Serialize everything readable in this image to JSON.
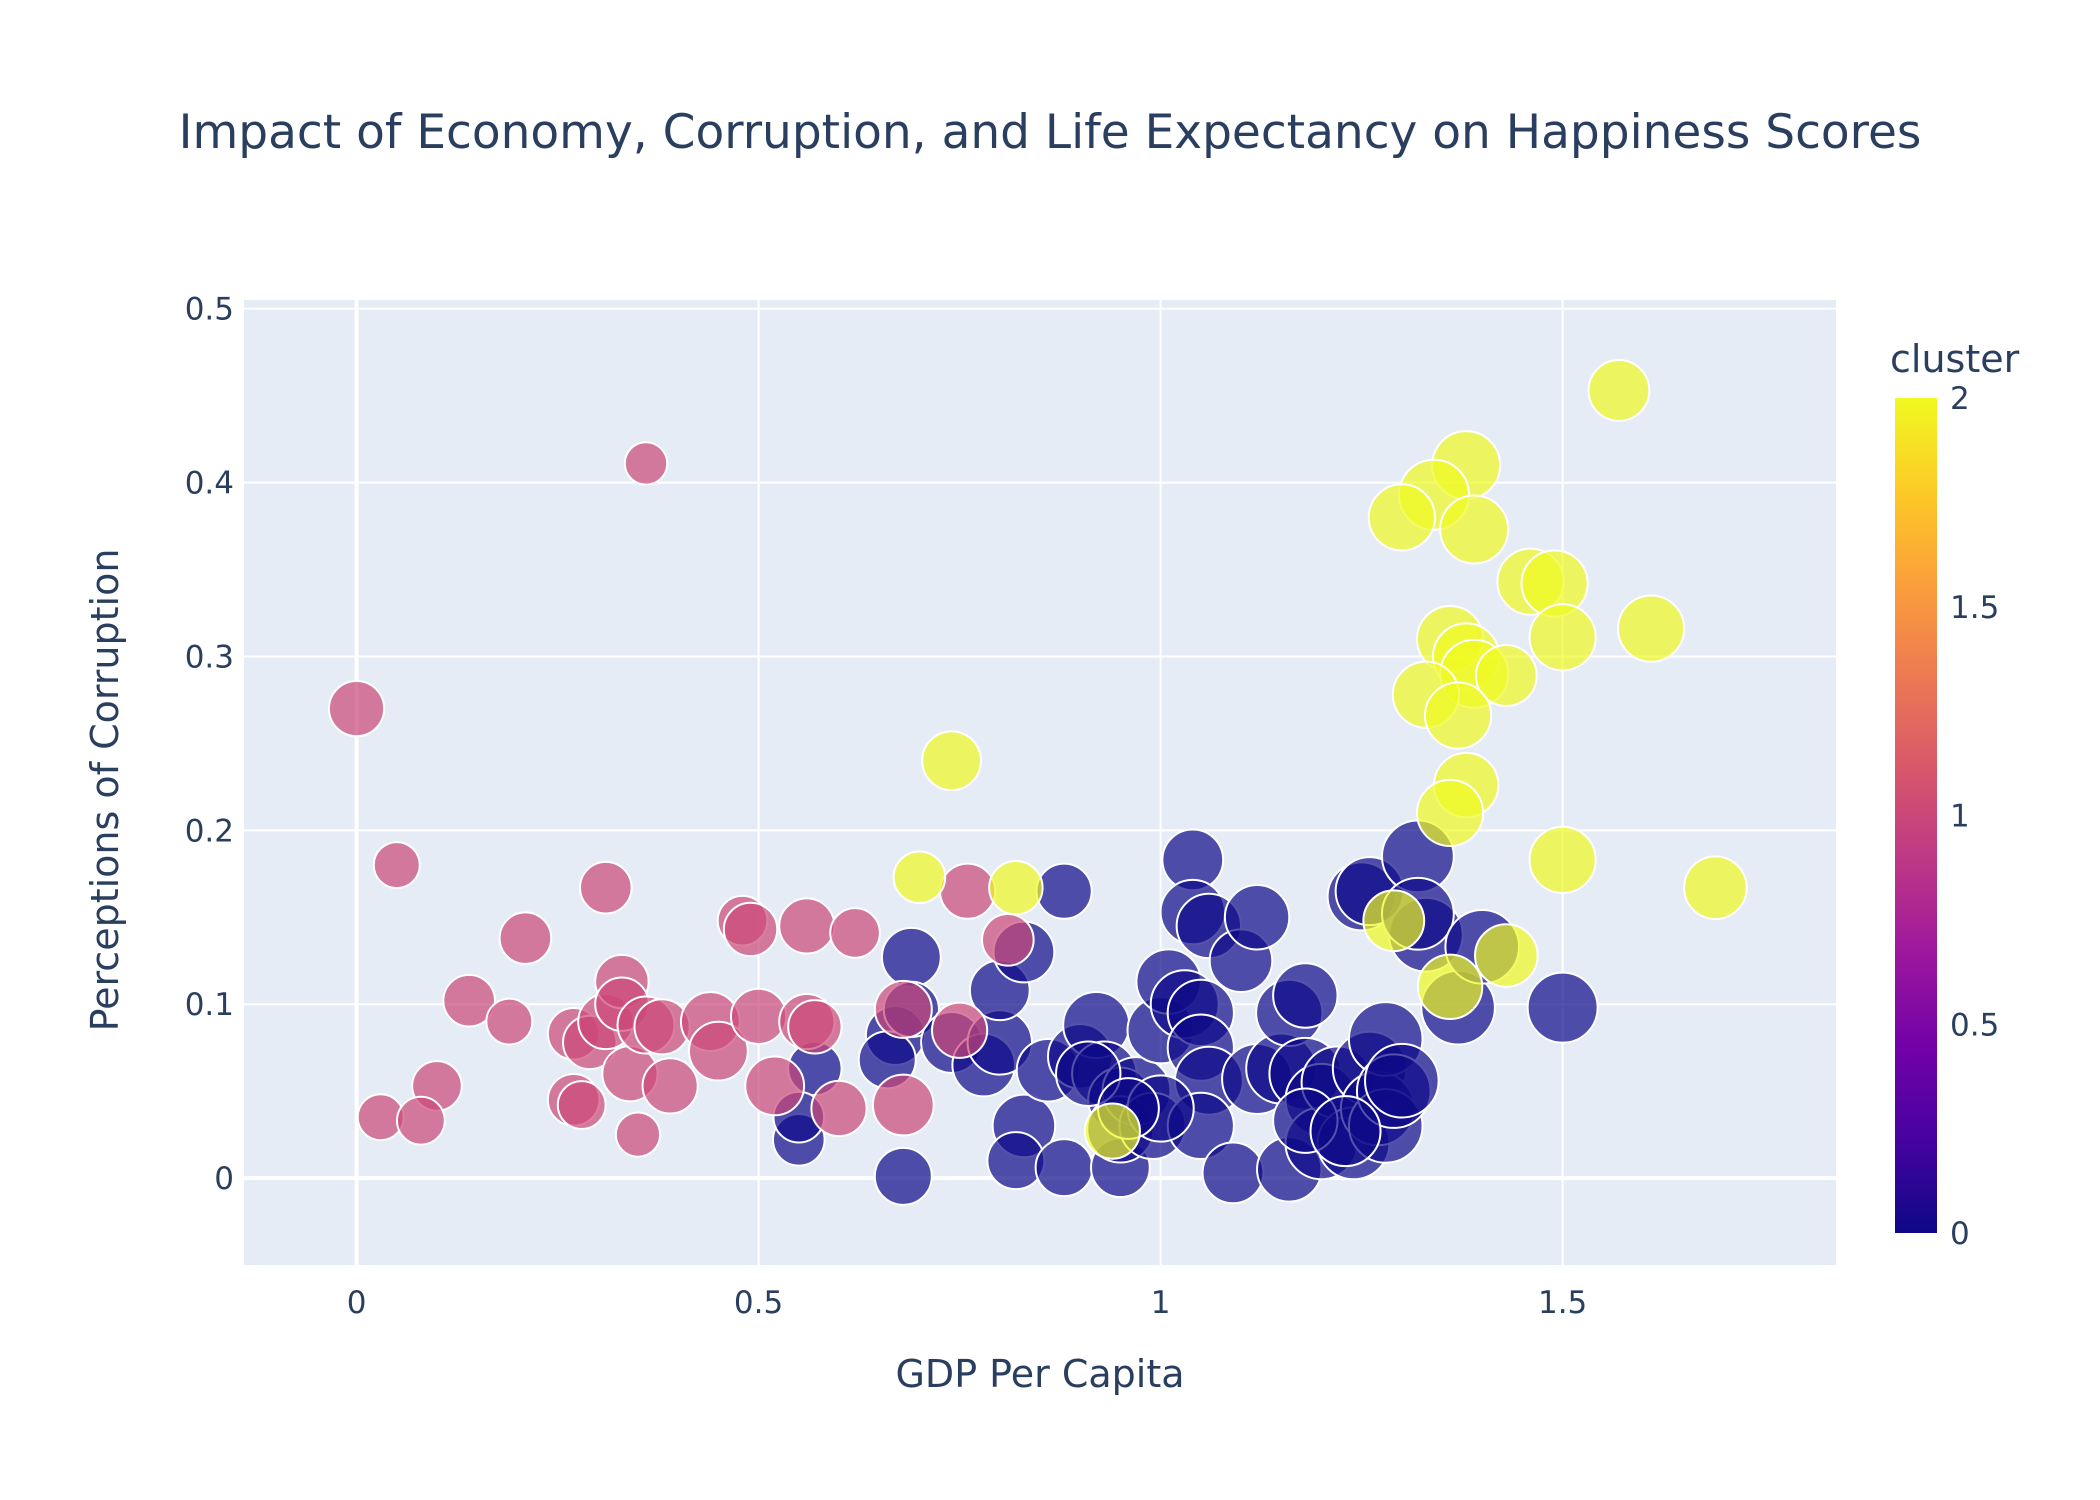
{
  "chart_data": {
    "type": "scatter",
    "title": "Impact of Economy, Corruption, and Life Expectancy on Happiness Scores",
    "xlabel": "GDP Per Capita",
    "ylabel": "Perceptions of Corruption",
    "xlim": [
      -0.14,
      1.84
    ],
    "ylim": [
      -0.05,
      0.505
    ],
    "xticks": [
      0,
      0.5,
      1,
      1.5
    ],
    "xtick_labels": [
      "0",
      "0.5",
      "1",
      "1.5"
    ],
    "yticks": [
      0,
      0.1,
      0.2,
      0.3,
      0.4,
      0.5
    ],
    "ytick_labels": [
      "0",
      "0.1",
      "0.2",
      "0.3",
      "0.4",
      "0.5"
    ],
    "grid": true,
    "size_encodes": "life expectancy",
    "colorbar": {
      "title": "cluster",
      "range": [
        0,
        2
      ],
      "ticks": [
        0,
        0.5,
        1,
        1.5,
        2
      ],
      "tick_labels": [
        "0",
        "0.5",
        "1",
        "1.5",
        "2"
      ],
      "colorscale": [
        "#0d0887",
        "#46039f",
        "#7201a8",
        "#9c179e",
        "#bd3786",
        "#d8576b",
        "#ed7953",
        "#fb9f3a",
        "#fdca26",
        "#f0f921"
      ]
    },
    "clusters": [
      {
        "cluster": 0,
        "color": "#0d0887",
        "points": [
          {
            "x": 0.69,
            "y": 0.127,
            "s": 0.64
          },
          {
            "x": 0.67,
            "y": 0.082,
            "s": 0.64
          },
          {
            "x": 0.66,
            "y": 0.068,
            "s": 0.62
          },
          {
            "x": 0.57,
            "y": 0.063,
            "s": 0.58
          },
          {
            "x": 0.55,
            "y": 0.022,
            "s": 0.56
          },
          {
            "x": 0.55,
            "y": 0.035,
            "s": 0.55
          },
          {
            "x": 0.68,
            "y": 0.001,
            "s": 0.62
          },
          {
            "x": 0.69,
            "y": 0.097,
            "s": 0.6
          },
          {
            "x": 0.74,
            "y": 0.078,
            "s": 0.66
          },
          {
            "x": 0.78,
            "y": 0.065,
            "s": 0.68
          },
          {
            "x": 0.8,
            "y": 0.078,
            "s": 0.7
          },
          {
            "x": 0.8,
            "y": 0.108,
            "s": 0.65
          },
          {
            "x": 0.83,
            "y": 0.13,
            "s": 0.66
          },
          {
            "x": 0.88,
            "y": 0.165,
            "s": 0.6
          },
          {
            "x": 0.83,
            "y": 0.03,
            "s": 0.68
          },
          {
            "x": 0.82,
            "y": 0.01,
            "s": 0.62
          },
          {
            "x": 0.88,
            "y": 0.006,
            "s": 0.62
          },
          {
            "x": 0.86,
            "y": 0.062,
            "s": 0.68
          },
          {
            "x": 0.9,
            "y": 0.07,
            "s": 0.7
          },
          {
            "x": 0.92,
            "y": 0.088,
            "s": 0.72
          },
          {
            "x": 0.93,
            "y": 0.06,
            "s": 0.7
          },
          {
            "x": 0.95,
            "y": 0.045,
            "s": 0.7
          },
          {
            "x": 0.95,
            "y": 0.006,
            "s": 0.64
          },
          {
            "x": 0.95,
            "y": 0.028,
            "s": 0.72
          },
          {
            "x": 0.97,
            "y": 0.05,
            "s": 0.74
          },
          {
            "x": 0.99,
            "y": 0.03,
            "s": 0.72
          },
          {
            "x": 1.0,
            "y": 0.085,
            "s": 0.72
          },
          {
            "x": 1.01,
            "y": 0.113,
            "s": 0.7
          },
          {
            "x": 1.03,
            "y": 0.1,
            "s": 0.74
          },
          {
            "x": 1.04,
            "y": 0.183,
            "s": 0.66
          },
          {
            "x": 1.04,
            "y": 0.153,
            "s": 0.7
          },
          {
            "x": 1.06,
            "y": 0.145,
            "s": 0.7
          },
          {
            "x": 1.05,
            "y": 0.095,
            "s": 0.72
          },
          {
            "x": 1.05,
            "y": 0.075,
            "s": 0.72
          },
          {
            "x": 1.06,
            "y": 0.056,
            "s": 0.74
          },
          {
            "x": 1.05,
            "y": 0.03,
            "s": 0.72
          },
          {
            "x": 1.09,
            "y": 0.003,
            "s": 0.66
          },
          {
            "x": 1.1,
            "y": 0.125,
            "s": 0.68
          },
          {
            "x": 1.12,
            "y": 0.15,
            "s": 0.7
          },
          {
            "x": 1.12,
            "y": 0.057,
            "s": 0.76
          },
          {
            "x": 1.15,
            "y": 0.063,
            "s": 0.76
          },
          {
            "x": 1.16,
            "y": 0.005,
            "s": 0.7
          },
          {
            "x": 1.16,
            "y": 0.095,
            "s": 0.72
          },
          {
            "x": 1.18,
            "y": 0.105,
            "s": 0.7
          },
          {
            "x": 1.18,
            "y": 0.06,
            "s": 0.78
          },
          {
            "x": 1.2,
            "y": 0.045,
            "s": 0.78
          },
          {
            "x": 1.2,
            "y": 0.02,
            "s": 0.78
          },
          {
            "x": 1.22,
            "y": 0.055,
            "s": 0.78
          },
          {
            "x": 1.24,
            "y": 0.02,
            "s": 0.78
          },
          {
            "x": 1.25,
            "y": 0.162,
            "s": 0.74
          },
          {
            "x": 1.26,
            "y": 0.165,
            "s": 0.74
          },
          {
            "x": 1.26,
            "y": 0.063,
            "s": 0.8
          },
          {
            "x": 1.27,
            "y": 0.04,
            "s": 0.8
          },
          {
            "x": 1.28,
            "y": 0.08,
            "s": 0.8
          },
          {
            "x": 1.28,
            "y": 0.03,
            "s": 0.8
          },
          {
            "x": 1.29,
            "y": 0.05,
            "s": 0.8
          },
          {
            "x": 1.3,
            "y": 0.056,
            "s": 0.8
          },
          {
            "x": 1.32,
            "y": 0.185,
            "s": 0.78
          },
          {
            "x": 1.33,
            "y": 0.14,
            "s": 0.8
          },
          {
            "x": 1.32,
            "y": 0.152,
            "s": 0.78
          },
          {
            "x": 1.37,
            "y": 0.098,
            "s": 0.8
          },
          {
            "x": 1.4,
            "y": 0.133,
            "s": 0.8
          },
          {
            "x": 1.5,
            "y": 0.098,
            "s": 0.76
          },
          {
            "x": 1.18,
            "y": 0.033,
            "s": 0.7
          },
          {
            "x": 1.23,
            "y": 0.027,
            "s": 0.76
          },
          {
            "x": 1.0,
            "y": 0.04,
            "s": 0.72
          },
          {
            "x": 0.91,
            "y": 0.06,
            "s": 0.7
          },
          {
            "x": 0.96,
            "y": 0.04,
            "s": 0.66
          }
        ]
      },
      {
        "cluster": 1,
        "color": "#cc4778",
        "points": [
          {
            "x": 0.0,
            "y": 0.27,
            "s": 0.6
          },
          {
            "x": 0.36,
            "y": 0.411,
            "s": 0.46
          },
          {
            "x": 0.05,
            "y": 0.18,
            "s": 0.5
          },
          {
            "x": 0.21,
            "y": 0.138,
            "s": 0.56
          },
          {
            "x": 0.31,
            "y": 0.167,
            "s": 0.56
          },
          {
            "x": 0.14,
            "y": 0.102,
            "s": 0.56
          },
          {
            "x": 0.19,
            "y": 0.09,
            "s": 0.5
          },
          {
            "x": 0.1,
            "y": 0.053,
            "s": 0.54
          },
          {
            "x": 0.03,
            "y": 0.035,
            "s": 0.5
          },
          {
            "x": 0.08,
            "y": 0.033,
            "s": 0.52
          },
          {
            "x": 0.27,
            "y": 0.083,
            "s": 0.56
          },
          {
            "x": 0.27,
            "y": 0.045,
            "s": 0.56
          },
          {
            "x": 0.28,
            "y": 0.042,
            "s": 0.52
          },
          {
            "x": 0.29,
            "y": 0.078,
            "s": 0.58
          },
          {
            "x": 0.31,
            "y": 0.09,
            "s": 0.6
          },
          {
            "x": 0.33,
            "y": 0.113,
            "s": 0.58
          },
          {
            "x": 0.33,
            "y": 0.1,
            "s": 0.58
          },
          {
            "x": 0.34,
            "y": 0.06,
            "s": 0.6
          },
          {
            "x": 0.35,
            "y": 0.025,
            "s": 0.48
          },
          {
            "x": 0.36,
            "y": 0.088,
            "s": 0.62
          },
          {
            "x": 0.38,
            "y": 0.087,
            "s": 0.6
          },
          {
            "x": 0.39,
            "y": 0.053,
            "s": 0.6
          },
          {
            "x": 0.44,
            "y": 0.09,
            "s": 0.64
          },
          {
            "x": 0.45,
            "y": 0.073,
            "s": 0.64
          },
          {
            "x": 0.48,
            "y": 0.148,
            "s": 0.54
          },
          {
            "x": 0.49,
            "y": 0.143,
            "s": 0.58
          },
          {
            "x": 0.5,
            "y": 0.093,
            "s": 0.6
          },
          {
            "x": 0.52,
            "y": 0.053,
            "s": 0.64
          },
          {
            "x": 0.56,
            "y": 0.145,
            "s": 0.6
          },
          {
            "x": 0.56,
            "y": 0.09,
            "s": 0.6
          },
          {
            "x": 0.57,
            "y": 0.087,
            "s": 0.58
          },
          {
            "x": 0.6,
            "y": 0.04,
            "s": 0.6
          },
          {
            "x": 0.62,
            "y": 0.141,
            "s": 0.54
          },
          {
            "x": 0.68,
            "y": 0.097,
            "s": 0.62
          },
          {
            "x": 0.68,
            "y": 0.042,
            "s": 0.66
          },
          {
            "x": 0.75,
            "y": 0.085,
            "s": 0.6
          },
          {
            "x": 0.76,
            "y": 0.165,
            "s": 0.6
          },
          {
            "x": 0.81,
            "y": 0.137,
            "s": 0.56
          }
        ]
      },
      {
        "cluster": 2,
        "color": "#f0f921",
        "points": [
          {
            "x": 1.57,
            "y": 0.453,
            "s": 0.66
          },
          {
            "x": 1.38,
            "y": 0.41,
            "s": 0.74
          },
          {
            "x": 1.34,
            "y": 0.393,
            "s": 0.76
          },
          {
            "x": 1.3,
            "y": 0.38,
            "s": 0.72
          },
          {
            "x": 1.39,
            "y": 0.373,
            "s": 0.74
          },
          {
            "x": 1.46,
            "y": 0.343,
            "s": 0.72
          },
          {
            "x": 1.49,
            "y": 0.342,
            "s": 0.72
          },
          {
            "x": 1.61,
            "y": 0.316,
            "s": 0.72
          },
          {
            "x": 1.5,
            "y": 0.311,
            "s": 0.72
          },
          {
            "x": 1.36,
            "y": 0.31,
            "s": 0.72
          },
          {
            "x": 1.38,
            "y": 0.3,
            "s": 0.72
          },
          {
            "x": 1.39,
            "y": 0.29,
            "s": 0.74
          },
          {
            "x": 1.43,
            "y": 0.289,
            "s": 0.66
          },
          {
            "x": 1.33,
            "y": 0.278,
            "s": 0.72
          },
          {
            "x": 1.37,
            "y": 0.266,
            "s": 0.72
          },
          {
            "x": 1.38,
            "y": 0.226,
            "s": 0.7
          },
          {
            "x": 1.36,
            "y": 0.21,
            "s": 0.72
          },
          {
            "x": 0.74,
            "y": 0.24,
            "s": 0.64
          },
          {
            "x": 1.5,
            "y": 0.183,
            "s": 0.72
          },
          {
            "x": 1.69,
            "y": 0.167,
            "s": 0.68
          },
          {
            "x": 0.7,
            "y": 0.173,
            "s": 0.56
          },
          {
            "x": 0.82,
            "y": 0.167,
            "s": 0.58
          },
          {
            "x": 1.43,
            "y": 0.128,
            "s": 0.68
          },
          {
            "x": 1.36,
            "y": 0.11,
            "s": 0.7
          },
          {
            "x": 0.94,
            "y": 0.027,
            "s": 0.6
          },
          {
            "x": 1.29,
            "y": 0.148,
            "s": 0.66
          }
        ]
      }
    ]
  }
}
